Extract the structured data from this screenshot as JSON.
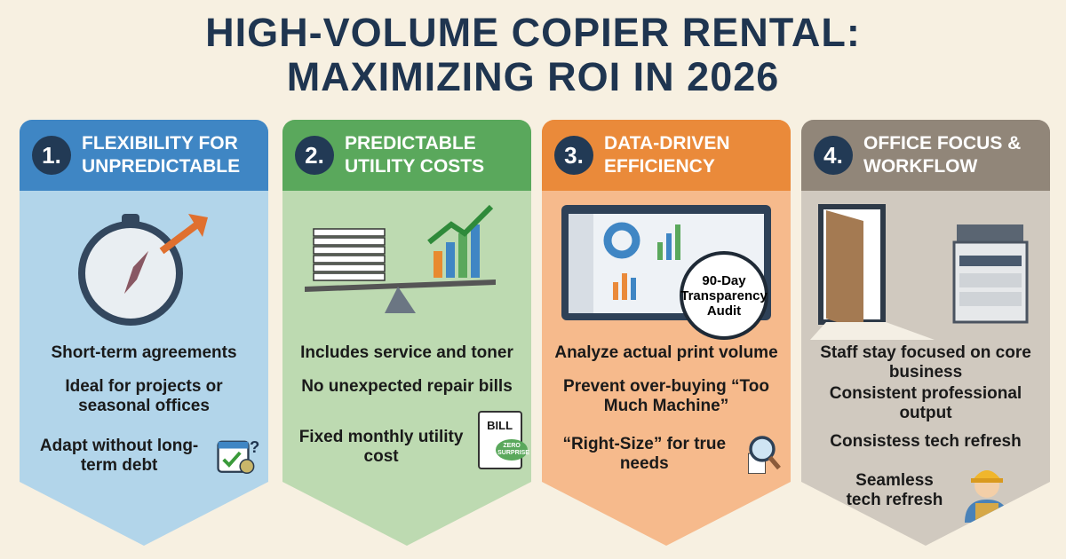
{
  "title": {
    "line1": "HIGH-VOLUME COPIER RENTAL:",
    "line2": "MAXIMIZING ROI IN 2026"
  },
  "panels": [
    {
      "number": "1.",
      "heading": "Flexibility for Unpredictable",
      "color": "#3f86c4",
      "body_color": "#b2d5ea",
      "points": [
        "Short-term agreements",
        "Ideal for projects or seasonal offices",
        "Adapt without long-term debt"
      ],
      "icons": [
        "compass-icon",
        "calendar-check-icon"
      ]
    },
    {
      "number": "2.",
      "heading": "Predictable Utility Costs",
      "color": "#5aa85c",
      "body_color": "#bddab1",
      "points": [
        "Includes service and toner",
        "No unexpected repair bills",
        "Fixed monthly utility cost"
      ],
      "icons": [
        "paper-stack-scale-icon",
        "bill-icon"
      ],
      "bill_label": "BILL",
      "stamp_label": "ZERO SURPRISE"
    },
    {
      "number": "3.",
      "heading": "Data-Driven Efficiency",
      "color": "#ea8a3a",
      "body_color": "#f6ba8c",
      "points": [
        "Analyze actual print volume",
        "Prevent over-buying “Too Much Machine”",
        "“Right-Size” for true needs"
      ],
      "icons": [
        "dashboard-monitor-icon",
        "magnifier-chart-icon"
      ],
      "badge": "90-Day Transparency Audit"
    },
    {
      "number": "4.",
      "heading": "Office Focus & Workflow",
      "color": "#918679",
      "body_color": "#d0c9bf",
      "points": [
        "Staff stay focused on core business",
        "Consistent professional output",
        "Consistess tech refresh",
        "Seamless tech refresh"
      ],
      "icons": [
        "door-icon",
        "copier-icon",
        "technician-icon"
      ]
    }
  ]
}
